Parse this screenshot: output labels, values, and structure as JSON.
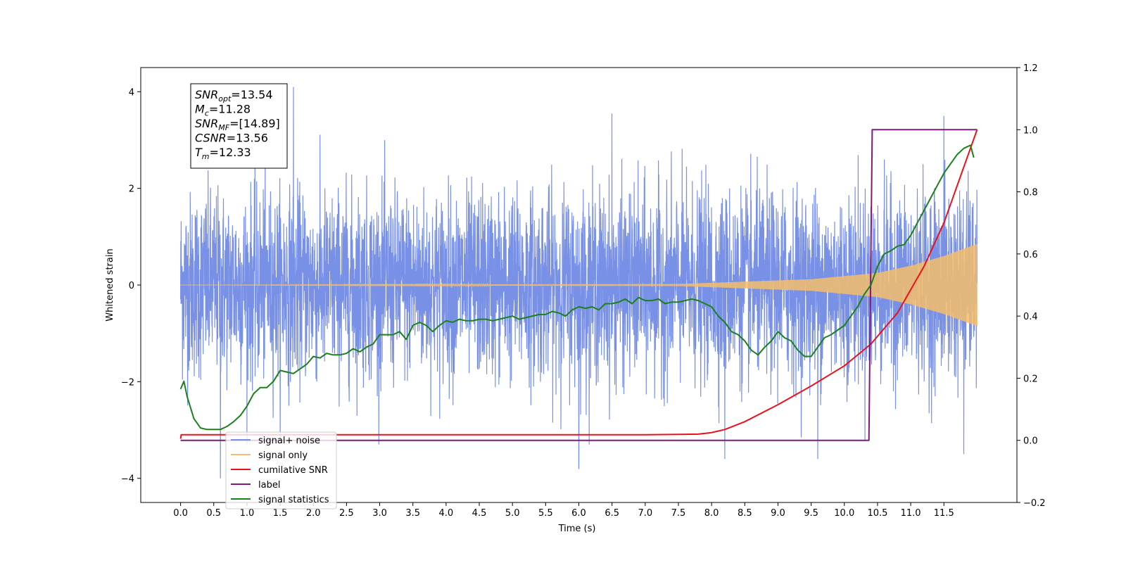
{
  "chart_data": {
    "type": "line",
    "xlabel": "Time (s)",
    "ylabel": "Whitened strain",
    "xlim": [
      -0.6,
      12.6
    ],
    "ylim": [
      -4.5,
      4.5
    ],
    "y2lim": [
      -0.2,
      1.2
    ],
    "x_ticks": [
      "0.0",
      "0.5",
      "1.0",
      "1.5",
      "2.0",
      "2.5",
      "3.0",
      "3.5",
      "4.0",
      "4.5",
      "5.0",
      "5.5",
      "6.0",
      "6.5",
      "7.0",
      "7.5",
      "8.0",
      "8.5",
      "9.0",
      "9.5",
      "10.0",
      "10.5",
      "11.0",
      "11.5"
    ],
    "y_ticks": [
      "4",
      "2",
      "0",
      "−2",
      "−4"
    ],
    "y2_ticks": [
      "1.2",
      "1.0",
      "0.8",
      "0.6",
      "0.4",
      "0.2",
      "0.0",
      "−0.2"
    ],
    "grid": false,
    "legend_position": "bottom-left",
    "annotation": {
      "lines": [
        {
          "var": "SNR",
          "sub": "opt",
          "value": "=13.54"
        },
        {
          "var": "M",
          "sub": "c",
          "value": "=11.28"
        },
        {
          "var": "SNR",
          "sub": "MF",
          "value": "=[14.89]"
        },
        {
          "var": "CSNR",
          "sub": "",
          "value": "=13.56"
        },
        {
          "var": "T",
          "sub": "m",
          "value": "=12.33"
        }
      ]
    },
    "series": [
      {
        "name": "signal+ noise",
        "axis": "left",
        "color": "#7891e6",
        "description": "noise-dominated strain, spread mostly within about ±2 with spikes to ±4",
        "x_range": [
          0.0,
          12.0
        ],
        "noise_sigma": 1.0,
        "spikes": [
          [
            1.7,
            4.1
          ],
          [
            6.5,
            3.55
          ],
          [
            11.5,
            3.5
          ],
          [
            0.6,
            -4.0
          ],
          [
            6.0,
            -3.8
          ],
          [
            8.2,
            -3.6
          ],
          [
            9.6,
            -3.6
          ],
          [
            11.8,
            -3.5
          ]
        ]
      },
      {
        "name": "signal only",
        "axis": "left",
        "color": "#f5bd6b",
        "description": "chirp whose amplitude grows from ~0 near 7.5 s to about 0.85 at 12.0 s",
        "x_range": [
          0.0,
          12.0
        ],
        "amplitude": [
          [
            0.0,
            0.0
          ],
          [
            7.5,
            0.02
          ],
          [
            8.5,
            0.07
          ],
          [
            9.5,
            0.12
          ],
          [
            10.5,
            0.25
          ],
          [
            11.0,
            0.4
          ],
          [
            11.5,
            0.6
          ],
          [
            12.0,
            0.85
          ]
        ]
      },
      {
        "name": "cumilative SNR",
        "axis": "right",
        "color": "#e8121b",
        "x": [
          0.0,
          0.01,
          1.0,
          3.0,
          5.0,
          7.0,
          7.5,
          7.8,
          8.0,
          8.2,
          8.5,
          9.0,
          9.5,
          10.0,
          10.4,
          10.8,
          11.2,
          11.5,
          11.8,
          12.0
        ],
        "values": [
          0.005,
          0.018,
          0.018,
          0.018,
          0.018,
          0.018,
          0.019,
          0.02,
          0.025,
          0.035,
          0.06,
          0.115,
          0.175,
          0.24,
          0.31,
          0.41,
          0.56,
          0.7,
          0.88,
          1.0
        ]
      },
      {
        "name": "label",
        "axis": "right",
        "color": "#7d1a7e",
        "x": [
          0.0,
          10.37,
          10.42,
          12.0
        ],
        "values": [
          0.0,
          0.0,
          1.0,
          1.0
        ]
      },
      {
        "name": "signal statistics",
        "axis": "right",
        "color": "#1c801c",
        "x": [
          0.0,
          0.05,
          0.1,
          0.2,
          0.3,
          0.4,
          0.5,
          0.6,
          0.7,
          0.8,
          0.9,
          1.0,
          1.1,
          1.2,
          1.3,
          1.4,
          1.5,
          1.6,
          1.7,
          1.8,
          1.9,
          2.0,
          2.1,
          2.2,
          2.3,
          2.4,
          2.5,
          2.6,
          2.7,
          2.8,
          2.9,
          3.0,
          3.1,
          3.2,
          3.3,
          3.4,
          3.5,
          3.6,
          3.7,
          3.8,
          3.9,
          4.0,
          4.1,
          4.2,
          4.3,
          4.4,
          4.5,
          4.6,
          4.7,
          4.8,
          4.9,
          5.0,
          5.1,
          5.2,
          5.3,
          5.4,
          5.5,
          5.6,
          5.7,
          5.8,
          5.9,
          6.0,
          6.1,
          6.2,
          6.3,
          6.4,
          6.5,
          6.6,
          6.7,
          6.8,
          6.9,
          7.0,
          7.1,
          7.2,
          7.3,
          7.4,
          7.5,
          7.6,
          7.7,
          7.8,
          7.9,
          8.0,
          8.1,
          8.2,
          8.3,
          8.4,
          8.5,
          8.6,
          8.7,
          8.8,
          8.9,
          9.0,
          9.1,
          9.2,
          9.3,
          9.4,
          9.5,
          9.6,
          9.7,
          9.8,
          9.9,
          10.0,
          10.1,
          10.2,
          10.3,
          10.4,
          10.5,
          10.6,
          10.7,
          10.8,
          10.9,
          11.0,
          11.1,
          11.2,
          11.3,
          11.4,
          11.5,
          11.6,
          11.7,
          11.8,
          11.9,
          11.95
        ],
        "values": [
          0.165,
          0.19,
          0.14,
          0.07,
          0.04,
          0.035,
          0.035,
          0.035,
          0.045,
          0.06,
          0.08,
          0.11,
          0.15,
          0.17,
          0.17,
          0.19,
          0.225,
          0.22,
          0.215,
          0.23,
          0.245,
          0.27,
          0.265,
          0.28,
          0.275,
          0.275,
          0.28,
          0.295,
          0.285,
          0.3,
          0.31,
          0.34,
          0.34,
          0.34,
          0.35,
          0.325,
          0.37,
          0.38,
          0.37,
          0.35,
          0.37,
          0.385,
          0.38,
          0.39,
          0.385,
          0.385,
          0.39,
          0.39,
          0.385,
          0.39,
          0.395,
          0.4,
          0.39,
          0.395,
          0.4,
          0.405,
          0.405,
          0.415,
          0.41,
          0.4,
          0.42,
          0.43,
          0.425,
          0.43,
          0.42,
          0.44,
          0.44,
          0.445,
          0.455,
          0.44,
          0.46,
          0.45,
          0.45,
          0.455,
          0.44,
          0.445,
          0.445,
          0.45,
          0.455,
          0.45,
          0.44,
          0.43,
          0.4,
          0.38,
          0.35,
          0.34,
          0.32,
          0.29,
          0.275,
          0.3,
          0.32,
          0.35,
          0.33,
          0.32,
          0.29,
          0.27,
          0.27,
          0.3,
          0.33,
          0.34,
          0.355,
          0.37,
          0.4,
          0.43,
          0.47,
          0.5,
          0.56,
          0.6,
          0.61,
          0.625,
          0.63,
          0.66,
          0.7,
          0.74,
          0.78,
          0.82,
          0.86,
          0.89,
          0.92,
          0.94,
          0.95,
          0.91
        ]
      }
    ]
  }
}
